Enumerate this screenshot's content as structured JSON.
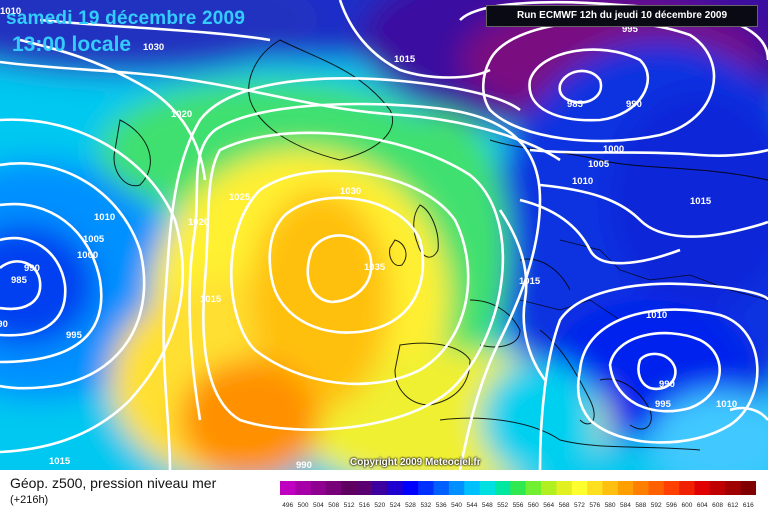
{
  "header": {
    "date": "samedi 19 décembre 2009",
    "time": "13:00 locale",
    "run": "Run ECMWF 12h du jeudi 10 décembre 2009"
  },
  "copyright": "Copyright 2009 Meteociel.fr",
  "legend": {
    "title": "Géop. z500, pression niveau mer",
    "step": "(+216h)",
    "scale_values": [
      "496",
      "500",
      "504",
      "508",
      "512",
      "516",
      "520",
      "524",
      "528",
      "532",
      "536",
      "540",
      "544",
      "548",
      "552",
      "556",
      "560",
      "564",
      "568",
      "572",
      "576",
      "580",
      "584",
      "588",
      "592",
      "596",
      "600",
      "604",
      "608",
      "612",
      "616"
    ],
    "scale_colors": [
      "#c000c0",
      "#a800a8",
      "#900090",
      "#780078",
      "#600060",
      "#5a0070",
      "#3c00a0",
      "#1e00d0",
      "#0000ff",
      "#0030ff",
      "#0060ff",
      "#0090ff",
      "#00c0ff",
      "#00e0e0",
      "#00e8a0",
      "#30e850",
      "#70f030",
      "#b0f020",
      "#e0f020",
      "#ffff30",
      "#ffe020",
      "#ffc010",
      "#ffa000",
      "#ff8000",
      "#ff6000",
      "#ff4000",
      "#f02000",
      "#e00000",
      "#c00000",
      "#a00000",
      "#800000"
    ]
  },
  "isobar_labels": [
    "1030",
    "1015",
    "995",
    "985",
    "990",
    "1020",
    "1000",
    "1005",
    "1010",
    "1015",
    "1025",
    "1020",
    "1010",
    "1005",
    "1000",
    "990",
    "985",
    "990",
    "995",
    "1030",
    "1035",
    "1015",
    "1010",
    "990",
    "995",
    "1010",
    "1015",
    "1015",
    "1010",
    "990"
  ],
  "colors": {
    "title": "#33ccff",
    "isobar": "#ffffff",
    "coastline": "#000000"
  }
}
